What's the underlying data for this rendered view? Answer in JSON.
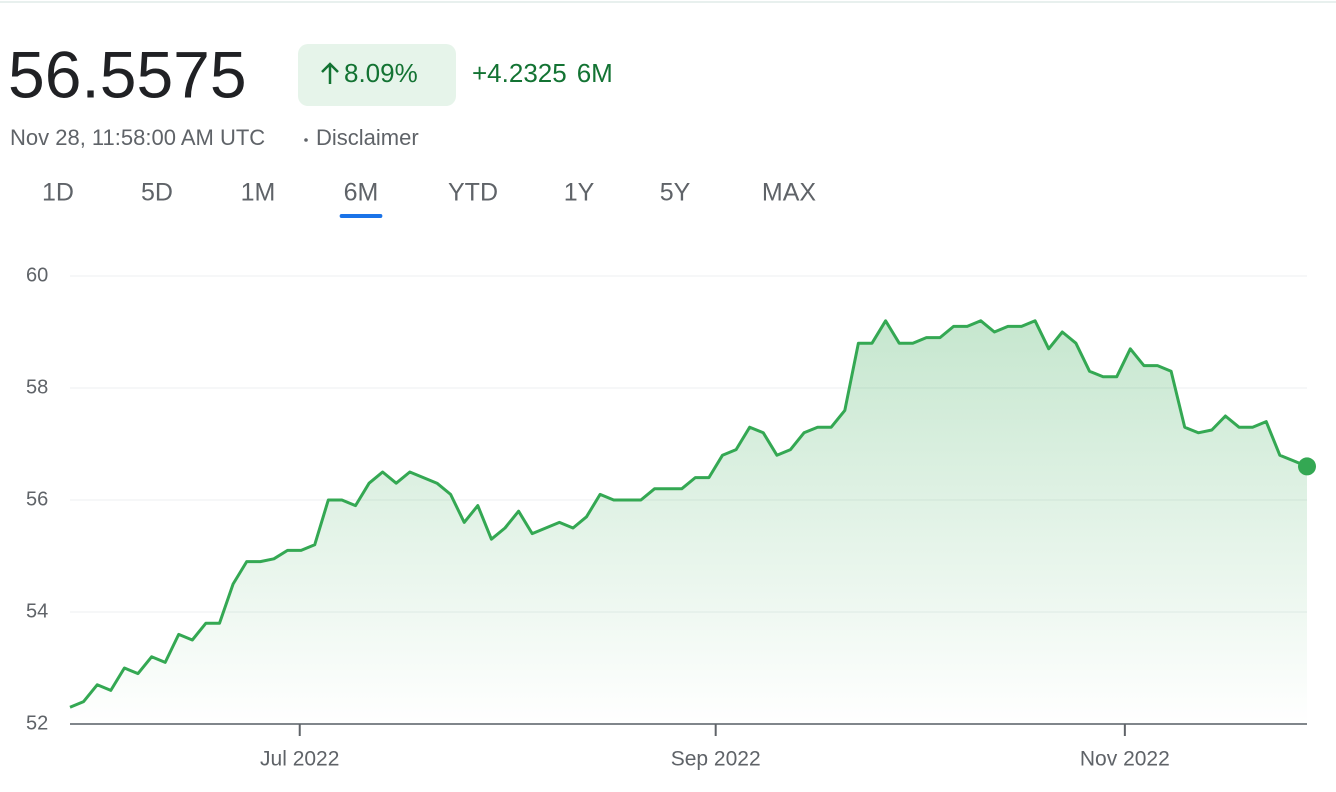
{
  "header": {
    "price": "56.5575",
    "change_pct": "8.09%",
    "change_abs": "+4.2325",
    "period": "6M",
    "timestamp": "Nov 28, 11:58:00 AM UTC",
    "disclaimer": "Disclaimer"
  },
  "tabs": [
    "1D",
    "5D",
    "1M",
    "6M",
    "YTD",
    "1Y",
    "5Y",
    "MAX"
  ],
  "active_tab": 3,
  "chart_data": {
    "type": "line",
    "color": "#34a853",
    "grid": true,
    "values": [
      52.3,
      52.4,
      52.7,
      52.6,
      53.0,
      52.9,
      53.2,
      53.1,
      53.6,
      53.5,
      53.8,
      53.8,
      54.5,
      54.9,
      54.9,
      54.95,
      55.1,
      55.1,
      55.2,
      56.0,
      56.0,
      55.9,
      56.3,
      56.5,
      56.3,
      56.5,
      56.4,
      56.3,
      56.1,
      55.6,
      55.9,
      55.3,
      55.5,
      55.8,
      55.4,
      55.5,
      55.6,
      55.5,
      55.7,
      56.1,
      56.0,
      56.0,
      56.0,
      56.2,
      56.2,
      56.2,
      56.4,
      56.4,
      56.8,
      56.9,
      57.3,
      57.2,
      56.8,
      56.9,
      57.2,
      57.3,
      57.3,
      57.6,
      58.8,
      58.8,
      59.2,
      58.8,
      58.8,
      58.9,
      58.9,
      59.1,
      59.1,
      59.2,
      59.0,
      59.1,
      59.1,
      59.2,
      58.7,
      59.0,
      58.8,
      58.3,
      58.2,
      58.2,
      58.7,
      58.4,
      58.4,
      58.3,
      57.3,
      57.2,
      57.25,
      57.5,
      57.3,
      57.3,
      57.4,
      56.8,
      56.7,
      56.6
    ],
    "xlim": [
      0,
      91
    ],
    "xticks": [
      {
        "value": 16.9,
        "label": "Jul 2022"
      },
      {
        "value": 47.5,
        "label": "Sep 2022"
      },
      {
        "value": 77.6,
        "label": "Nov 2022"
      }
    ],
    "ylim": [
      52,
      60
    ],
    "yticks": [
      52,
      54,
      56,
      58,
      60
    ]
  }
}
